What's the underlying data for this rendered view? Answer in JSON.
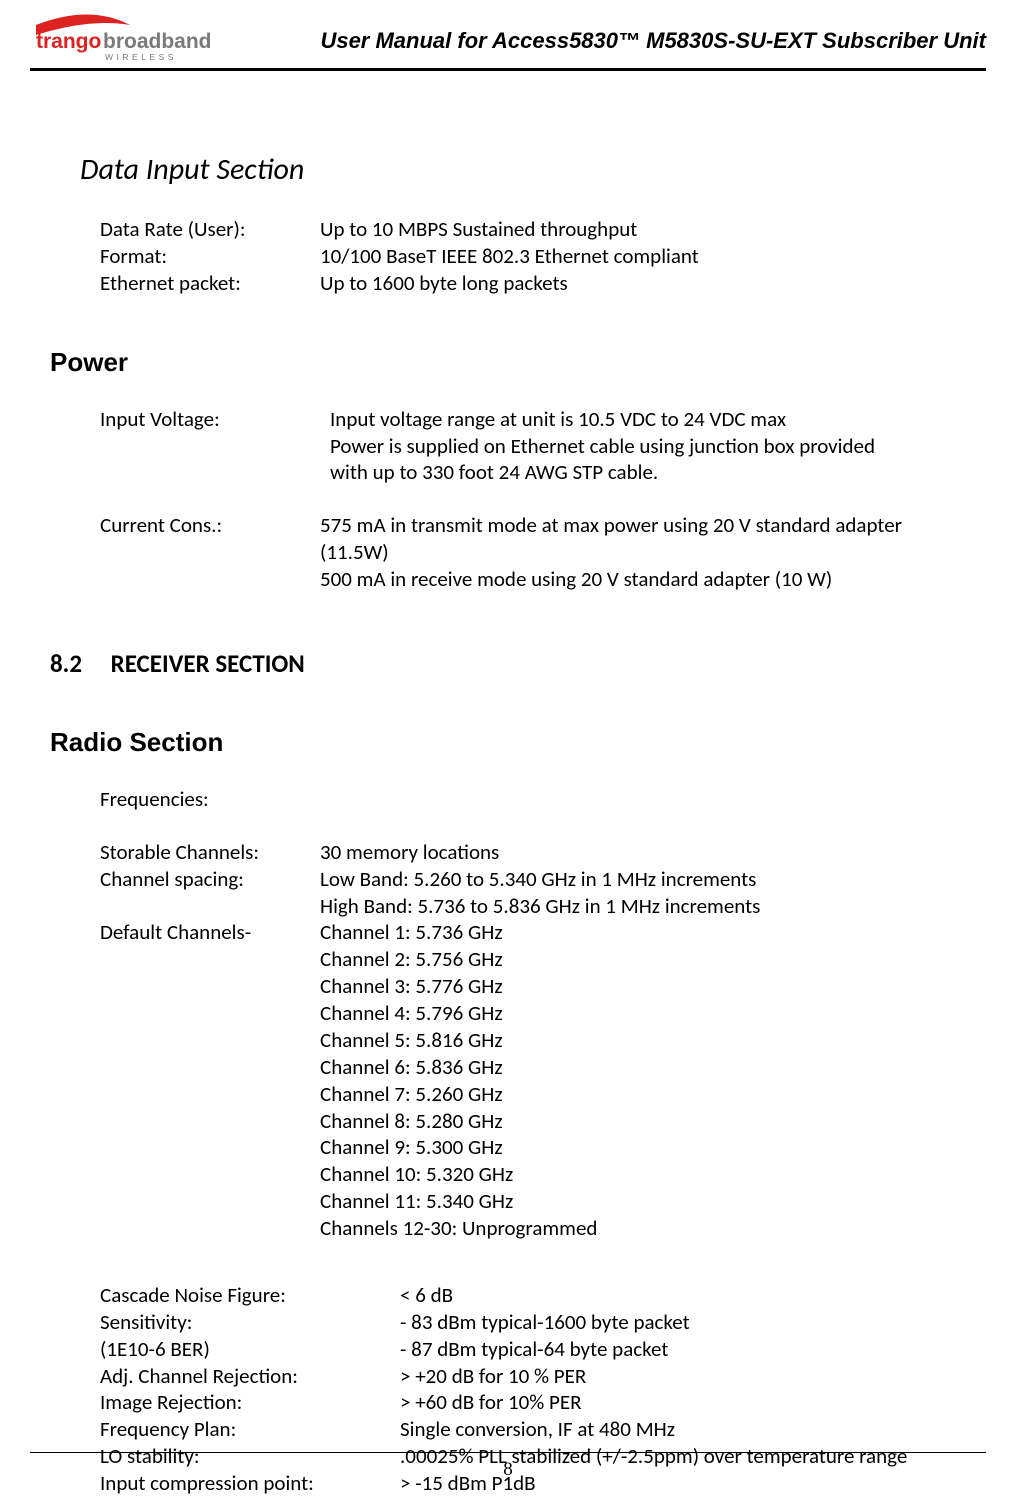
{
  "header": {
    "brand_text1": "trango",
    "brand_text2": "broadband",
    "brand_sub": "W I R E L E S S",
    "doc_title": "User Manual for Access5830™ M5830S-SU-EXT Subscriber Unit"
  },
  "sections": {
    "data_input": {
      "heading": "Data Input Section",
      "rows": [
        {
          "label": "Data Rate (User):",
          "value": "Up to 10 MBPS Sustained throughput"
        },
        {
          "label": "Format:",
          "value": "10/100 BaseT IEEE 802.3 Ethernet compliant"
        },
        {
          "label": "Ethernet packet:",
          "value": "Up to 1600 byte long packets"
        }
      ]
    },
    "power": {
      "heading": "Power",
      "rows": [
        {
          "label": "Input Voltage:",
          "value": "Input voltage range at unit is 10.5 VDC to 24 VDC max"
        },
        {
          "label": "",
          "value": "Power is supplied on Ethernet cable using junction box provided"
        },
        {
          "label": "",
          "value": "with up to 330 foot 24 AWG STP cable."
        }
      ],
      "rows2": [
        {
          "label": "Current Cons.:",
          "value": "575 mA in transmit mode at max power using 20 V standard adapter"
        },
        {
          "label": "",
          "value": "(11.5W)"
        },
        {
          "label": "",
          "value": "500 mA in receive mode using 20 V standard adapter (10 W)"
        }
      ]
    },
    "receiver": {
      "num": "8.2",
      "heading": "RECEIVER SECTION"
    },
    "radio": {
      "heading": "Radio Section",
      "freq_label": "Frequencies:",
      "rows": [
        {
          "label": "Storable Channels:",
          "value": "30 memory locations"
        },
        {
          "label": "Channel spacing:",
          "value": "Low Band: 5.260 to 5.340 GHz in 1 MHz increments"
        },
        {
          "label": "",
          "value": "High Band: 5.736 to 5.836 GHz in 1 MHz increments"
        },
        {
          "label": "Default Channels-",
          "value": "Channel 1: 5.736 GHz"
        },
        {
          "label": "",
          "value": "Channel 2: 5.756 GHz"
        },
        {
          "label": "",
          "value": "Channel 3: 5.776 GHz"
        },
        {
          "label": "",
          "value": "Channel 4: 5.796 GHz"
        },
        {
          "label": "",
          "value": "Channel 5: 5.816 GHz"
        },
        {
          "label": "",
          "value": "Channel 6: 5.836 GHz"
        },
        {
          "label": "",
          "value": "Channel 7: 5.260 GHz"
        },
        {
          "label": "",
          "value": "Channel 8: 5.280 GHz"
        },
        {
          "label": "",
          "value": "Channel 9: 5.300 GHz"
        },
        {
          "label": "",
          "value": "Channel 10: 5.320 GHz"
        },
        {
          "label": "",
          "value": "Channel 11: 5.340 GHz"
        },
        {
          "label": "",
          "value": "Channels 12-30: Unprogrammed"
        }
      ],
      "wide_rows": [
        {
          "label": "Cascade Noise Figure:",
          "value": "< 6 dB"
        },
        {
          "label": "Sensitivity:",
          "value": "- 83 dBm typical-1600 byte packet"
        },
        {
          "label": "(1E10-6 BER)",
          "value": "- 87 dBm typical-64 byte packet"
        },
        {
          "label": "Adj. Channel Rejection:",
          "value": "> +20 dB for 10 % PER"
        },
        {
          "label": "Image Rejection:",
          "value": "> +60 dB for 10% PER"
        },
        {
          "label": "Frequency Plan:",
          "value": "Single conversion, IF at 480 MHz"
        },
        {
          "label": "LO stability:",
          "value": ".00025% PLL stabilized (+/-2.5ppm) over temperature range"
        },
        {
          "label": "Input compression point:",
          "value": "> -15 dBm P1dB"
        }
      ]
    }
  },
  "footer": {
    "page": "8"
  },
  "colors": {
    "brand_red": "#d22",
    "brand_gray": "#7a7a7a",
    "text": "#000000",
    "bg": "#ffffff"
  }
}
